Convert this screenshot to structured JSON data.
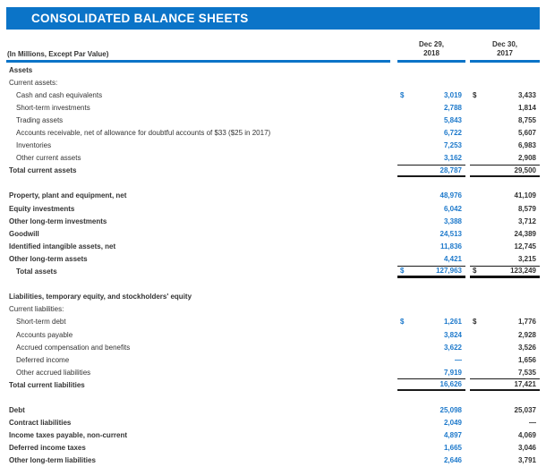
{
  "title": "CONSOLIDATED BALANCE SHEETS",
  "colors": {
    "brand_blue": "#0b74c8",
    "value_blue_2018": "#1d79cb",
    "text_dark": "#333333",
    "rule_black": "#1a1a1a"
  },
  "table": {
    "caption": "(In Millions, Except Par Value)",
    "col2018": {
      "line1": "Dec 29,",
      "line2": "2018"
    },
    "col2017": {
      "line1": "Dec 30,",
      "line2": "2017"
    },
    "rows": [
      {
        "label": "Assets"
      },
      {
        "label": "Current assets:"
      },
      {
        "label": "Cash and cash equivalents",
        "d1": "$",
        "v1": "3,019",
        "d2": "$",
        "v2": "3,433"
      },
      {
        "label": "Short-term investments",
        "v1": "2,788",
        "v2": "1,814"
      },
      {
        "label": "Trading assets",
        "v1": "5,843",
        "v2": "8,755"
      },
      {
        "label": "Accounts receivable, net of allowance for doubtful accounts of $33 ($25 in 2017)",
        "v1": "6,722",
        "v2": "5,607"
      },
      {
        "label": "Inventories",
        "v1": "7,253",
        "v2": "6,983"
      },
      {
        "label": "Other current assets",
        "v1": "3,162",
        "v2": "2,908"
      },
      {
        "label": "Total current assets",
        "v1": "28,787",
        "v2": "29,500"
      },
      {
        "label": "Property, plant and equipment, net",
        "v1": "48,976",
        "v2": "41,109"
      },
      {
        "label": "Equity investments",
        "v1": "6,042",
        "v2": "8,579"
      },
      {
        "label": "Other long-term investments",
        "v1": "3,388",
        "v2": "3,712"
      },
      {
        "label": "Goodwill",
        "v1": "24,513",
        "v2": "24,389"
      },
      {
        "label": "Identified intangible assets, net",
        "v1": "11,836",
        "v2": "12,745"
      },
      {
        "label": "Other long-term assets",
        "v1": "4,421",
        "v2": "3,215"
      },
      {
        "label": "Total assets",
        "d1": "$",
        "v1": "127,963",
        "d2": "$",
        "v2": "123,249"
      },
      {
        "label": "Liabilities, temporary equity, and stockholders' equity"
      },
      {
        "label": "Current liabilities:"
      },
      {
        "label": "Short-term debt",
        "d1": "$",
        "v1": "1,261",
        "d2": "$",
        "v2": "1,776"
      },
      {
        "label": "Accounts payable",
        "v1": "3,824",
        "v2": "2,928"
      },
      {
        "label": "Accrued compensation and benefits",
        "v1": "3,622",
        "v2": "3,526"
      },
      {
        "label": "Deferred income",
        "v1": "—",
        "v2": "1,656"
      },
      {
        "label": "Other accrued liabilities",
        "v1": "7,919",
        "v2": "7,535"
      },
      {
        "label": "Total current liabilities",
        "v1": "16,626",
        "v2": "17,421"
      },
      {
        "label": "Debt",
        "v1": "25,098",
        "v2": "25,037"
      },
      {
        "label": "Contract liabilities",
        "v1": "2,049",
        "v2": "—"
      },
      {
        "label": "Income taxes payable, non-current",
        "v1": "4,897",
        "v2": "4,069"
      },
      {
        "label": "Deferred income taxes",
        "v1": "1,665",
        "v2": "3,046"
      },
      {
        "label": "Other long-term liabilities",
        "v1": "2,646",
        "v2": "3,791"
      }
    ]
  }
}
